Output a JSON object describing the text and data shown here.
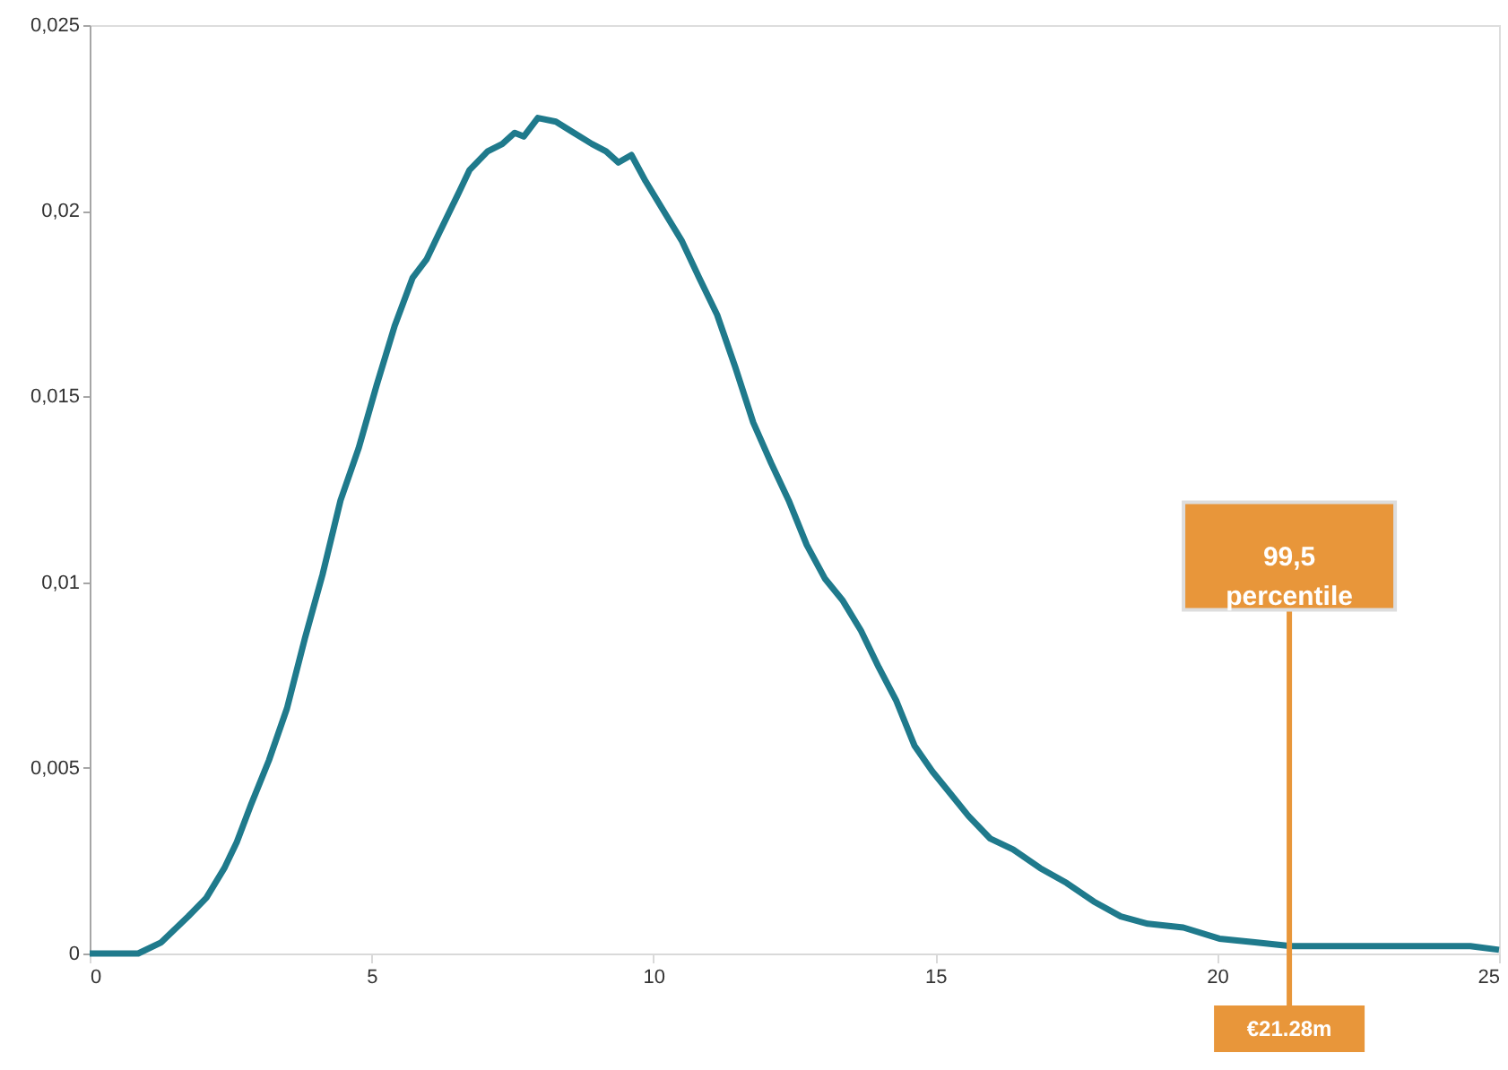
{
  "chart_data": {
    "type": "line",
    "x": [
      0,
      0.86,
      1.27,
      1.75,
      2.07,
      2.39,
      2.61,
      2.86,
      3.18,
      3.5,
      3.82,
      4.13,
      4.45,
      4.77,
      5.09,
      5.41,
      5.73,
      5.98,
      6.2,
      6.52,
      6.74,
      7.06,
      7.32,
      7.54,
      7.7,
      7.95,
      8.27,
      8.59,
      8.91,
      9.16,
      9.38,
      9.61,
      9.86,
      10.18,
      10.5,
      10.81,
      11.13,
      11.45,
      11.77,
      12.09,
      12.4,
      12.72,
      13.04,
      13.36,
      13.68,
      14.0,
      14.31,
      14.63,
      14.95,
      15.27,
      15.59,
      15.97,
      16.38,
      16.86,
      17.33,
      17.81,
      18.29,
      18.77,
      19.4,
      20.04,
      20.67,
      21.31,
      21.95,
      22.58,
      23.22,
      23.85,
      24.49,
      25.0
    ],
    "series": [
      {
        "color": "#1f7a8c",
        "values": [
          0,
          0,
          0.0003,
          0.001,
          0.0015,
          0.0023,
          0.003,
          0.004,
          0.0052,
          0.0066,
          0.0085,
          0.0102,
          0.0122,
          0.0136,
          0.0153,
          0.0169,
          0.0182,
          0.0187,
          0.0194,
          0.0204,
          0.0211,
          0.0216,
          0.0218,
          0.0221,
          0.022,
          0.0225,
          0.0224,
          0.0221,
          0.0218,
          0.0216,
          0.0213,
          0.0215,
          0.0208,
          0.02,
          0.0192,
          0.0182,
          0.0172,
          0.0158,
          0.0143,
          0.0132,
          0.0122,
          0.011,
          0.0101,
          0.0095,
          0.0087,
          0.0077,
          0.0068,
          0.0056,
          0.0049,
          0.0043,
          0.0037,
          0.0031,
          0.0028,
          0.0023,
          0.0019,
          0.0014,
          0.001,
          0.0008,
          0.0007,
          0.0004,
          0.0003,
          0.0002,
          0.0002,
          0.0002,
          0.0002,
          0.0002,
          0.0002,
          0.0001
        ]
      }
    ],
    "xlim": [
      0,
      25
    ],
    "xticks": [
      0,
      5,
      10,
      15,
      20,
      25
    ],
    "ylim": [
      0,
      0.025
    ],
    "yticks": [
      0,
      {
        "value": 0.005,
        "label": "0,005"
      },
      {
        "value": 0.01,
        "label": "0,01"
      },
      {
        "value": 0.015,
        "label": "0,015"
      },
      {
        "value": 0.02,
        "label": "0,02"
      },
      {
        "value": 0.025,
        "label": "0,025"
      }
    ],
    "grid": false,
    "marker": "none",
    "line_style": "solid",
    "ref_lines": [
      {
        "axis": "x",
        "value": 21.28,
        "label": "€21.28m",
        "color": "#e8963a"
      }
    ],
    "annotations": [
      {
        "text": "99,5 percentile",
        "x": 21.28,
        "y": 0.0107
      }
    ]
  }
}
